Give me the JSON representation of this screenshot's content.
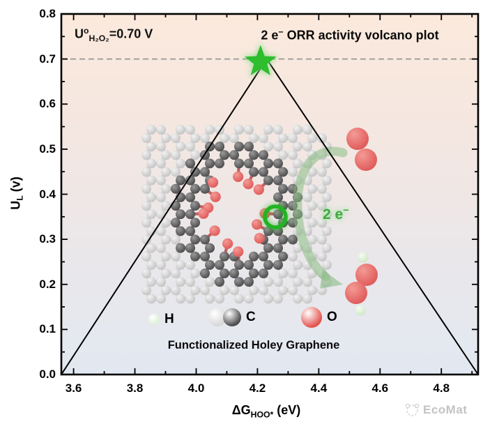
{
  "chart_data": {
    "type": "line",
    "title_parts": {
      "prefix": "2 e",
      "sup": "−",
      "suffix": " ORR activity volcano plot"
    },
    "xlabel_parts": {
      "base": "ΔG",
      "sub": "HOO*",
      "suffix": " (eV)"
    },
    "ylabel_parts": {
      "base": "U",
      "sub": "L",
      "suffix": " (v)"
    },
    "xlim": [
      3.56,
      4.92
    ],
    "ylim": [
      0.0,
      0.8
    ],
    "x_ticks": [
      3.6,
      3.8,
      4.0,
      4.2,
      4.4,
      4.6,
      4.8
    ],
    "x_tick_labels": [
      "3.6",
      "3.8",
      "4.0",
      "4.2",
      "4.4",
      "4.6",
      "4.8"
    ],
    "x_minor_ticks": [
      3.7,
      3.9,
      4.1,
      4.3,
      4.5,
      4.7,
      4.9
    ],
    "y_ticks": [
      0.0,
      0.1,
      0.2,
      0.3,
      0.4,
      0.5,
      0.6,
      0.7,
      0.8
    ],
    "y_tick_labels": [
      "0.0",
      "0.1",
      "0.2",
      "0.3",
      "0.4",
      "0.5",
      "0.6",
      "0.7",
      "0.8"
    ],
    "y_minor_ticks": [
      0.05,
      0.15,
      0.25,
      0.35,
      0.45,
      0.55,
      0.65,
      0.75
    ],
    "series": [
      {
        "name": "2e− ORR activity volcano",
        "x": [
          3.56,
          4.23,
          4.92
        ],
        "y": [
          0.0,
          0.7,
          0.0
        ],
        "color": "#000000"
      }
    ],
    "reference_line": {
      "y": 0.7,
      "style": "dashed",
      "color": "#8a8a8a",
      "label_parts": {
        "base": "U",
        "sup": "o",
        "sub": "H₂O₂",
        "suffix": "=0.70 V"
      }
    },
    "peak_marker": {
      "shape": "star",
      "x": 4.21,
      "y": 0.7,
      "color": "#2dbd2d",
      "glow_color": "#8fdc8f"
    },
    "background_gradient": [
      "#fbe9dc",
      "#f4e7e1",
      "#eae7ea",
      "#e2e8f1"
    ],
    "grid": false,
    "legend_position": "none"
  },
  "inset": {
    "caption": "Functionalized Holey Graphene",
    "legend": [
      {
        "label": "H",
        "colors": [
          "#dff0d8"
        ]
      },
      {
        "label": "C",
        "colors": [
          "#d8d8d8",
          "#4c4c4c"
        ]
      },
      {
        "label": "O",
        "colors": [
          "#e3554f"
        ]
      }
    ],
    "electron_label_parts": {
      "prefix": "2 e",
      "sup": "−"
    },
    "electron_label_color": "#46a546",
    "molecule_colors": {
      "carbon_light": "#bcbcbc",
      "carbon_dark": "#555555",
      "oxygen": "#db4f4f",
      "hydrogen": "#dff0d8"
    },
    "arrow_color": "#8bbd85",
    "highlight_ring_color": "#22b422"
  },
  "watermark": {
    "text": "EcoMat"
  }
}
